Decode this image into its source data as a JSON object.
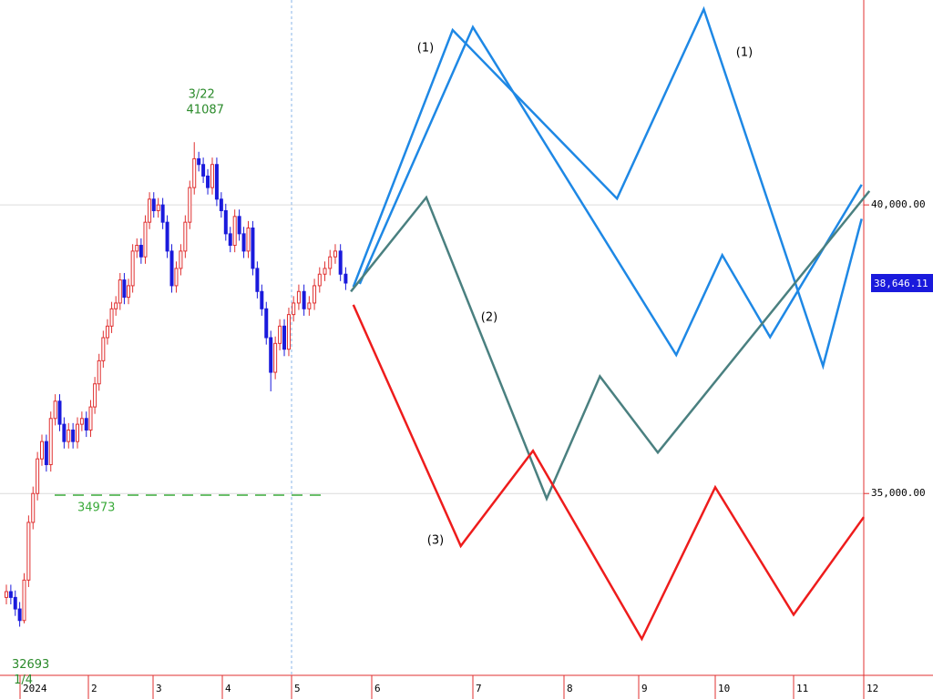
{
  "chart_data": {
    "type": "candlestick",
    "x": [
      0.8,
      0.865,
      0.93,
      0.995,
      1.06,
      1.125,
      1.19,
      1.255,
      1.32,
      1.385,
      1.45,
      1.515,
      1.58,
      1.645,
      1.71,
      1.775,
      1.84,
      1.905,
      1.97,
      2.035,
      2.1,
      2.165,
      2.23,
      2.295,
      2.36,
      2.425,
      2.49,
      2.555,
      2.62,
      2.685,
      2.75,
      2.815,
      2.88,
      2.945,
      3.01,
      3.075,
      3.14,
      3.205,
      3.27,
      3.335,
      3.4,
      3.465,
      3.53,
      3.595,
      3.66,
      3.725,
      3.79,
      3.855,
      3.92,
      3.985,
      4.05,
      4.115,
      4.18,
      4.245,
      4.31,
      4.375,
      4.44,
      4.505,
      4.57,
      4.635,
      4.7,
      4.765,
      4.83,
      4.895,
      4.96,
      5.025,
      5.09,
      5.155,
      5.22,
      5.285,
      5.35,
      5.415,
      5.48,
      5.545,
      5.61,
      5.675
    ],
    "open": [
      33200,
      33300,
      33200,
      33000,
      32800,
      33500,
      34500,
      35000,
      35600,
      35900,
      35500,
      36300,
      36600,
      36200,
      35900,
      36100,
      35900,
      36200,
      36300,
      36100,
      36500,
      36900,
      37300,
      37700,
      37900,
      38200,
      38300,
      38700,
      38400,
      38600,
      39200,
      39300,
      39100,
      39700,
      40100,
      39900,
      40000,
      39700,
      39200,
      38600,
      38900,
      39200,
      39700,
      40300,
      40800,
      40700,
      40500,
      40300,
      40700,
      40100,
      39900,
      39500,
      39300,
      39800,
      39500,
      39200,
      39600,
      38900,
      38500,
      38200,
      37700,
      37100,
      37600,
      37900,
      37500,
      38100,
      38300,
      38500,
      38200,
      38300,
      38600,
      38800,
      38900,
      39100,
      39200,
      38800
    ],
    "high": [
      33420,
      33420,
      33320,
      33120,
      33620,
      34620,
      35120,
      35720,
      36020,
      36020,
      36420,
      36720,
      36720,
      36320,
      36220,
      36220,
      36320,
      36420,
      36420,
      36620,
      37020,
      37420,
      37820,
      38020,
      38320,
      38420,
      38820,
      38820,
      38720,
      39320,
      39420,
      39420,
      39820,
      40220,
      40220,
      40120,
      40120,
      39820,
      39320,
      39020,
      39320,
      39820,
      40420,
      41087,
      40920,
      40820,
      40620,
      40820,
      40820,
      40220,
      40020,
      39620,
      39920,
      39920,
      39620,
      39720,
      39720,
      39020,
      38620,
      38320,
      37820,
      37720,
      38020,
      38020,
      38220,
      38420,
      38620,
      38620,
      38420,
      38720,
      38920,
      39020,
      39220,
      39320,
      39320,
      38920
    ],
    "low": [
      33080,
      33080,
      32880,
      32693,
      32750,
      33380,
      34380,
      34880,
      35480,
      35380,
      35380,
      36180,
      36080,
      35780,
      35780,
      35780,
      35780,
      36080,
      35980,
      35980,
      36380,
      36780,
      37180,
      37580,
      37780,
      38080,
      38180,
      38280,
      38280,
      38480,
      39080,
      38980,
      38980,
      39580,
      39780,
      39780,
      39580,
      39080,
      38480,
      38480,
      38780,
      39080,
      39580,
      40180,
      40580,
      40380,
      40180,
      40180,
      39980,
      39780,
      39380,
      39180,
      39180,
      39380,
      39080,
      39080,
      38780,
      38380,
      38080,
      37580,
      36770,
      36980,
      37480,
      37380,
      37380,
      37980,
      38180,
      38080,
      38080,
      38180,
      38480,
      38680,
      38780,
      38980,
      38680,
      38526
    ],
    "close": [
      33300,
      33200,
      33000,
      32800,
      33500,
      34500,
      35000,
      35600,
      35900,
      35500,
      36300,
      36600,
      36200,
      35900,
      36100,
      35900,
      36200,
      36300,
      36100,
      36500,
      36900,
      37300,
      37700,
      37900,
      38200,
      38300,
      38700,
      38400,
      38600,
      39200,
      39300,
      39100,
      39700,
      40100,
      39900,
      40000,
      39700,
      39200,
      38600,
      38900,
      39200,
      39700,
      40300,
      40800,
      40700,
      40500,
      40300,
      40700,
      40100,
      39900,
      39500,
      39300,
      39800,
      39500,
      39200,
      39600,
      38900,
      38500,
      38200,
      37700,
      37100,
      37600,
      37900,
      37500,
      38100,
      38300,
      38500,
      38200,
      38300,
      38600,
      38800,
      38900,
      39100,
      39200,
      38800,
      38646.11
    ],
    "up_color": "#e03030",
    "down_color": "#1a1adc",
    "annotations": [
      "3/22",
      "1/4"
    ],
    "level": 34973,
    "level_color": "#3aaa3a",
    "last_price": {
      "value": 38646.11,
      "label": "38,646.11"
    },
    "series": [
      {
        "name": "(1)",
        "color": "#1e88e5",
        "x": [
          5.77,
          6.8,
          8.71,
          9.85,
          11.42,
          11.97
        ],
        "values": [
          38580,
          43030,
          40110,
          43390,
          37210,
          39760
        ]
      },
      {
        "name": "(1)",
        "color": "#1e88e5",
        "x": [
          5.85,
          7.0,
          9.49,
          10.09,
          10.7,
          11.97
        ],
        "values": [
          38630,
          43080,
          37400,
          39130,
          37710,
          40350
        ]
      },
      {
        "name": "(2)",
        "color": "#4a8080",
        "x": [
          5.74,
          6.54,
          7.81,
          8.48,
          9.25,
          12.08
        ],
        "values": [
          38500,
          40130,
          34910,
          37030,
          35710,
          40240
        ]
      },
      {
        "name": "(3)",
        "color": "#ee1c1c",
        "x": [
          5.77,
          6.88,
          7.66,
          9.04,
          10.0,
          11.0,
          12.0
        ],
        "values": [
          38270,
          34090,
          35740,
          32480,
          35110,
          32900,
          34590
        ]
      }
    ],
    "ylim": [
      31850,
      43550
    ],
    "yticks": [
      {
        "value": 35000,
        "label": "35,000.00"
      },
      {
        "value": 40000,
        "label": "40,000.00"
      }
    ],
    "xticks": [
      {
        "value": 1,
        "label": "2024"
      },
      2,
      3,
      4,
      5,
      6,
      7,
      8,
      9,
      10,
      11,
      12
    ],
    "grid": true
  }
}
